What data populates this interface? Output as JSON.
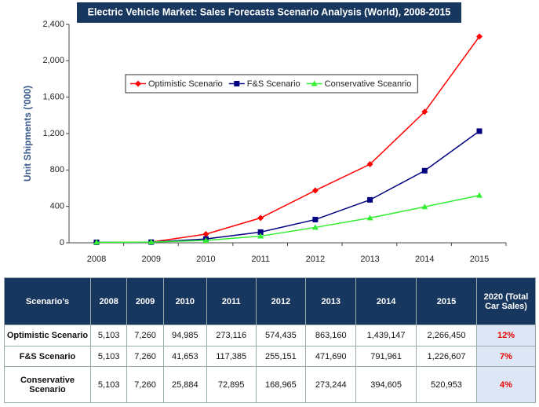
{
  "chart_data": {
    "type": "line",
    "title": "Electric Vehicle Market: Sales Forecasts Scenario Analysis (World), 2008-2015",
    "y_label": "Unit Shipments ('000)",
    "categories": [
      "2008",
      "2009",
      "2010",
      "2011",
      "2012",
      "2013",
      "2014",
      "2015"
    ],
    "series": [
      {
        "name": "Optimistic Scenario",
        "color": "#ff0000",
        "marker": "diamond",
        "values": [
          5.103,
          7.26,
          94.985,
          273.116,
          574.435,
          863.16,
          1439.147,
          2266.45
        ]
      },
      {
        "name": "F&S Scenario",
        "color": "#000080",
        "marker": "square",
        "values": [
          5.103,
          7.26,
          41.653,
          117.385,
          255.151,
          471.69,
          791.961,
          1226.607
        ]
      },
      {
        "name": "Conservative Sceanrio",
        "color": "#33ee33",
        "marker": "triangle",
        "values": [
          5.103,
          7.26,
          25.884,
          72.895,
          168.965,
          273.244,
          394.605,
          520.953
        ]
      }
    ],
    "ylim": [
      0,
      2400
    ],
    "yticks": [
      0,
      400,
      800,
      {
        "value": 1200,
        "label": "1,200"
      },
      {
        "value": 1600,
        "label": "1,600"
      },
      {
        "value": 2000,
        "label": "2,000"
      },
      {
        "value": 2400,
        "label": "2,400"
      }
    ],
    "grid": false,
    "legend": "top-left"
  },
  "table": {
    "header": [
      "Scenario's",
      "2008",
      "2009",
      "2010",
      "2011",
      "2012",
      "2013",
      "2014",
      "2015",
      "2020 (Total Car Sales)"
    ],
    "rows": [
      [
        "Optimistic Scenario",
        "5,103",
        "7,260",
        "94,985",
        "273,116",
        "574,435",
        "863,160",
        "1,439,147",
        "2,266,450",
        "12%"
      ],
      [
        "F&S Scenario",
        "5,103",
        "7,260",
        "41,653",
        "117,385",
        "255,151",
        "471,690",
        "791,961",
        "1,226,607",
        "7%"
      ],
      [
        "Conservative Scenario",
        "5,103",
        "7,260",
        "25,884",
        "72,895",
        "168,965",
        "273,244",
        "394,605",
        "520,953",
        "4%"
      ]
    ]
  }
}
